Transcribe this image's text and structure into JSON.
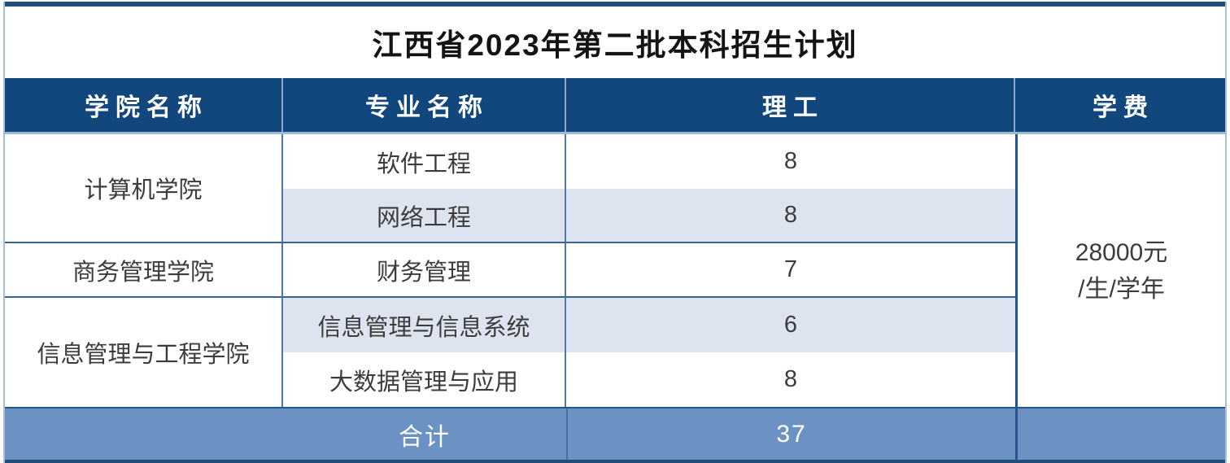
{
  "title": "江西省2023年第二批本科招生计划",
  "columns": {
    "college": "学院名称",
    "major": "专业名称",
    "track": "理工",
    "tuition": "学费"
  },
  "groups": [
    {
      "college": "计算机学院",
      "majors": [
        {
          "name": "软件工程",
          "count": "8"
        },
        {
          "name": "网络工程",
          "count": "8"
        }
      ]
    },
    {
      "college": "商务管理学院",
      "majors": [
        {
          "name": "财务管理",
          "count": "7"
        }
      ]
    },
    {
      "college": "信息管理与工程学院",
      "majors": [
        {
          "name": "信息管理与信息系统",
          "count": "6"
        },
        {
          "name": "大数据管理与应用",
          "count": "8"
        }
      ]
    }
  ],
  "tuition": {
    "line1": "28000元",
    "line2": "/生/学年"
  },
  "footer": {
    "label": "合计",
    "total": "37"
  },
  "colors": {
    "header_bg": "#12477E",
    "footer_bg": "#6B92C3",
    "zebra_row_bg": "#DDE4F0",
    "dark_line": "#24568E",
    "medium_line": "#4C78AB",
    "light_line": "#9FB8D4",
    "frame_navy": "#1F4E79",
    "outer_border": "#A9BFD8",
    "body_text": "#3C3C3C"
  }
}
